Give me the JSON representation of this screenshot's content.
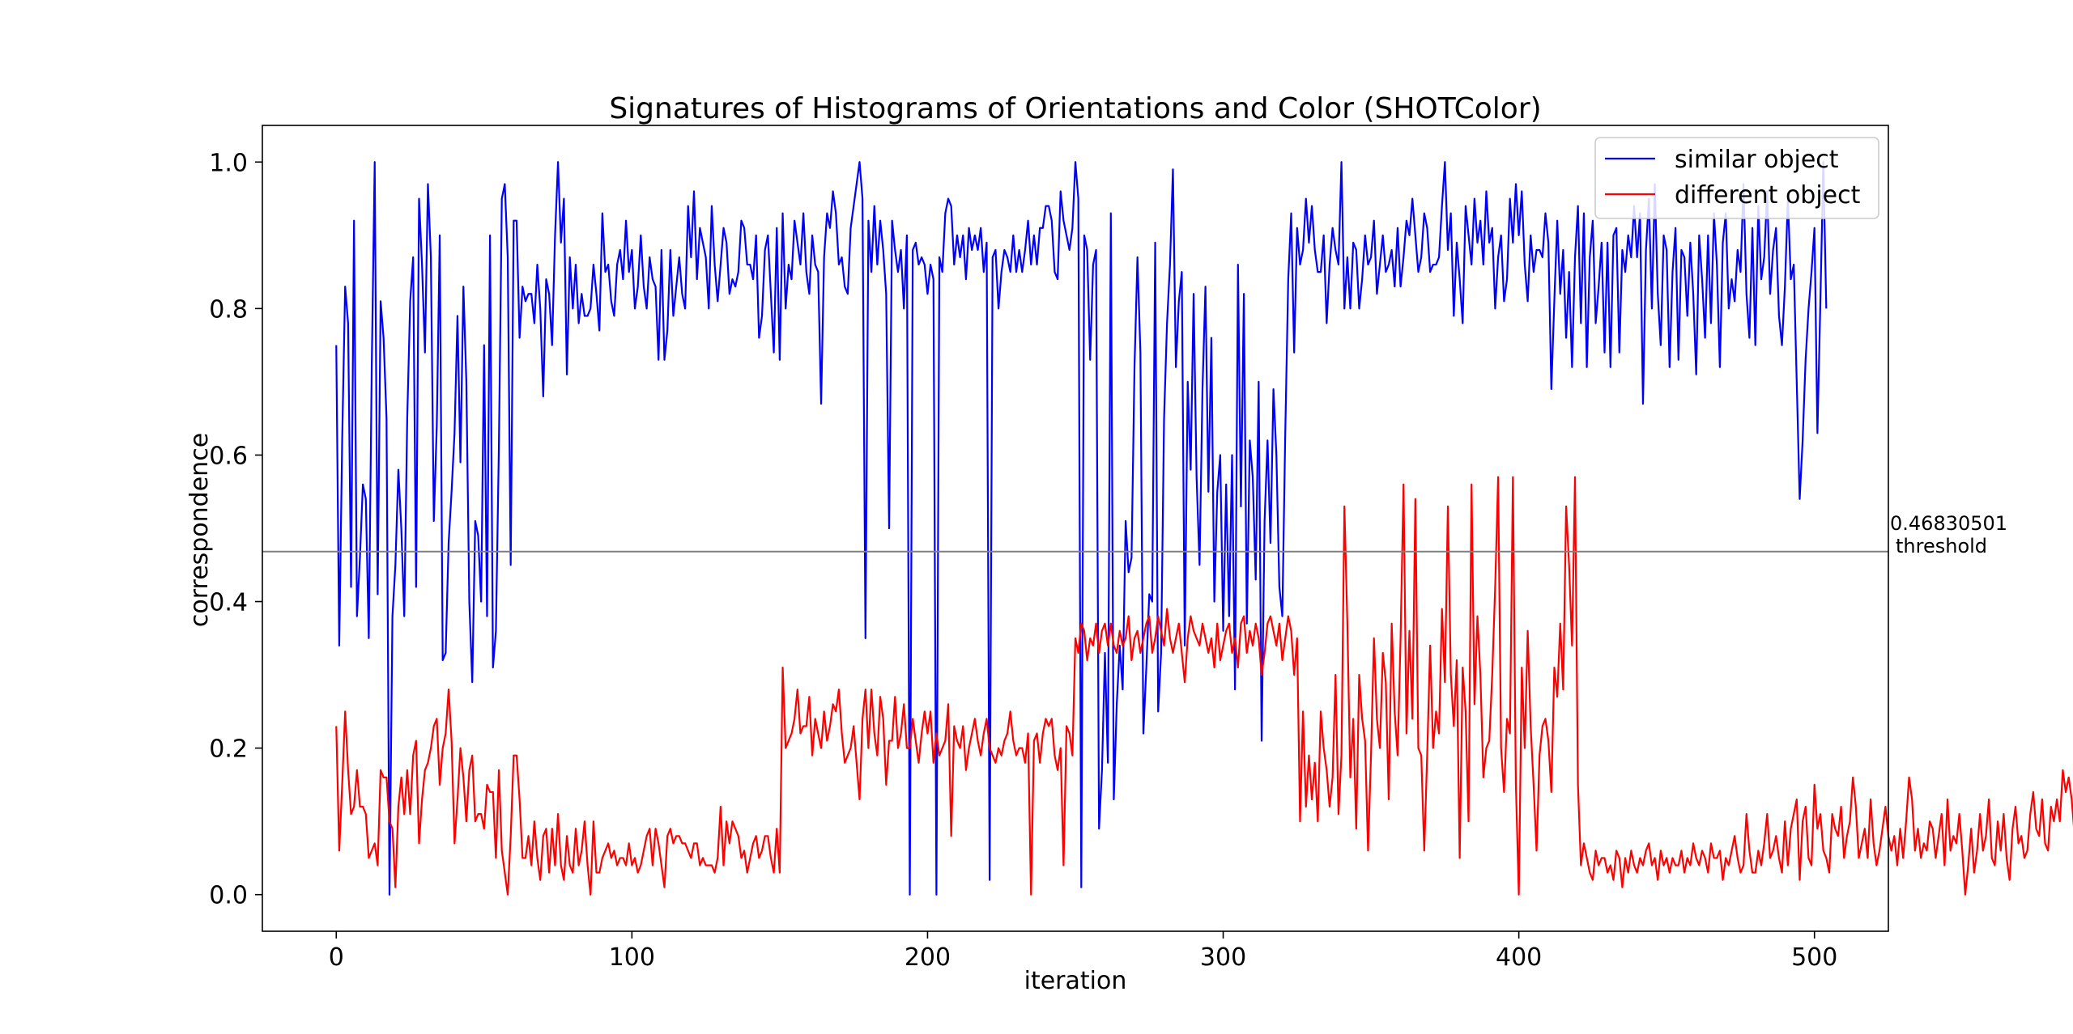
{
  "chart_data": {
    "type": "line",
    "title": "Signatures of Histograms of Orientations and Color (SHOTColor)",
    "xlabel": "iteration",
    "ylabel": "correspondence",
    "xlim": [
      -25,
      525
    ],
    "ylim": [
      -0.05,
      1.05
    ],
    "xticks": [
      0,
      100,
      200,
      300,
      400,
      500
    ],
    "yticks": [
      0.0,
      0.2,
      0.4,
      0.6,
      0.8,
      1.0
    ],
    "xtick_labels": [
      "0",
      "100",
      "200",
      "300",
      "400",
      "500"
    ],
    "ytick_labels": [
      "0.0",
      "0.2",
      "0.4",
      "0.6",
      "0.8",
      "1.0"
    ],
    "grid": false,
    "legend_position": "top-right",
    "threshold": {
      "value": 0.46830501,
      "value_label": "0.46830501",
      "label": "threshold",
      "color": "#808080"
    },
    "series": [
      {
        "name": "similar object",
        "color": "#0000ff",
        "y": [
          0.75,
          0.34,
          0.62,
          0.83,
          0.78,
          0.42,
          0.92,
          0.38,
          0.46,
          0.56,
          0.54,
          0.35,
          0.72,
          1.0,
          0.41,
          0.81,
          0.76,
          0.65,
          0.0,
          0.38,
          0.45,
          0.58,
          0.5,
          0.38,
          0.65,
          0.81,
          0.87,
          0.42,
          0.95,
          0.86,
          0.74,
          0.97,
          0.87,
          0.51,
          0.64,
          0.9,
          0.32,
          0.33,
          0.48,
          0.55,
          0.63,
          0.79,
          0.59,
          0.83,
          0.7,
          0.4,
          0.29,
          0.51,
          0.49,
          0.4,
          0.75,
          0.38,
          0.9,
          0.31,
          0.36,
          0.61,
          0.95,
          0.97,
          0.87,
          0.45,
          0.92,
          0.92,
          0.76,
          0.83,
          0.81,
          0.82,
          0.82,
          0.78,
          0.86,
          0.8,
          0.68,
          0.84,
          0.82,
          0.75,
          0.9,
          1.0,
          0.89,
          0.95,
          0.71,
          0.87,
          0.8,
          0.86,
          0.78,
          0.82,
          0.79,
          0.79,
          0.8,
          0.86,
          0.82,
          0.77,
          0.93,
          0.85,
          0.86,
          0.81,
          0.79,
          0.86,
          0.88,
          0.84,
          0.92,
          0.85,
          0.88,
          0.8,
          0.83,
          0.9,
          0.83,
          0.8,
          0.87,
          0.84,
          0.83,
          0.73,
          0.88,
          0.73,
          0.77,
          0.88,
          0.79,
          0.83,
          0.87,
          0.82,
          0.8,
          0.94,
          0.87,
          0.96,
          0.84,
          0.91,
          0.89,
          0.87,
          0.8,
          0.94,
          0.86,
          0.81,
          0.86,
          0.91,
          0.89,
          0.82,
          0.84,
          0.83,
          0.85,
          0.92,
          0.91,
          0.86,
          0.86,
          0.84,
          0.9,
          0.76,
          0.79,
          0.88,
          0.9,
          0.82,
          0.74,
          0.91,
          0.73,
          0.93,
          0.8,
          0.86,
          0.84,
          0.92,
          0.89,
          0.86,
          0.93,
          0.85,
          0.82,
          0.9,
          0.86,
          0.85,
          0.67,
          0.87,
          0.93,
          0.91,
          0.96,
          0.93,
          0.86,
          0.87,
          0.83,
          0.82,
          0.91,
          0.94,
          0.97,
          1.0,
          0.95,
          0.35,
          0.92,
          0.85,
          0.94,
          0.86,
          0.92,
          0.88,
          0.82,
          0.5,
          0.92,
          0.88,
          0.85,
          0.88,
          0.8,
          0.9,
          0.0,
          0.88,
          0.89,
          0.86,
          0.87,
          0.86,
          0.82,
          0.86,
          0.84,
          0.0,
          0.87,
          0.85,
          0.93,
          0.95,
          0.94,
          0.86,
          0.9,
          0.87,
          0.9,
          0.84,
          0.91,
          0.88,
          0.9,
          0.88,
          0.91,
          0.85,
          0.89,
          0.02,
          0.87,
          0.88,
          0.8,
          0.85,
          0.88,
          0.87,
          0.85,
          0.9,
          0.85,
          0.88,
          0.85,
          0.88,
          0.92,
          0.86,
          0.9,
          0.86,
          0.91,
          0.91,
          0.94,
          0.94,
          0.92,
          0.85,
          0.84,
          0.96,
          0.92,
          0.9,
          0.88,
          0.91,
          1.0,
          0.95,
          0.01,
          0.9,
          0.88,
          0.73,
          0.86,
          0.88,
          0.09,
          0.17,
          0.33,
          0.18,
          0.93,
          0.13,
          0.26,
          0.34,
          0.28,
          0.51,
          0.44,
          0.46,
          0.72,
          0.87,
          0.74,
          0.22,
          0.31,
          0.41,
          0.4,
          0.89,
          0.25,
          0.33,
          0.65,
          0.78,
          0.86,
          0.99,
          0.72,
          0.81,
          0.85,
          0.34,
          0.7,
          0.58,
          0.82,
          0.57,
          0.45,
          0.69,
          0.83,
          0.55,
          0.76,
          0.4,
          0.55,
          0.6,
          0.36,
          0.56,
          0.38,
          0.6,
          0.28,
          0.86,
          0.53,
          0.82,
          0.37,
          0.62,
          0.57,
          0.43,
          0.7,
          0.21,
          0.51,
          0.62,
          0.48,
          0.69,
          0.6,
          0.42,
          0.38,
          0.63,
          0.84,
          0.93,
          0.74,
          0.91,
          0.86,
          0.88,
          0.95,
          0.89,
          0.94,
          0.88,
          0.85,
          0.85,
          0.9,
          0.78,
          0.86,
          0.91,
          0.88,
          0.86,
          1.0,
          0.8,
          0.87,
          0.8,
          0.89,
          0.88,
          0.8,
          0.84,
          0.9,
          0.86,
          0.87,
          0.92,
          0.82,
          0.86,
          0.9,
          0.85,
          0.86,
          0.88,
          0.83,
          0.91,
          0.83,
          0.87,
          0.92,
          0.9,
          0.95,
          0.9,
          0.85,
          0.87,
          0.93,
          0.91,
          0.85,
          0.86,
          0.86,
          0.87,
          0.94,
          1.0,
          0.88,
          0.93,
          0.79,
          0.89,
          0.84,
          0.78,
          0.94,
          0.9,
          0.86,
          0.95,
          0.89,
          0.92,
          0.86,
          0.96,
          0.89,
          0.91,
          0.8,
          0.87,
          0.9,
          0.81,
          0.84,
          0.95,
          0.89,
          0.97,
          0.9,
          0.96,
          0.86,
          0.81,
          0.9,
          0.85,
          0.88,
          0.88,
          0.87,
          0.93,
          0.89,
          0.69,
          0.81,
          0.92,
          0.82,
          0.88,
          0.76,
          0.85,
          0.72,
          0.87,
          0.94,
          0.78,
          0.93,
          0.72,
          0.87,
          0.92,
          0.78,
          0.83,
          0.89,
          0.74,
          0.89,
          0.72,
          0.9,
          0.91,
          0.74,
          0.88,
          0.85,
          0.9,
          0.87,
          0.94,
          0.87,
          0.93,
          0.67,
          0.88,
          0.95,
          0.8,
          0.97,
          0.82,
          0.75,
          0.9,
          0.88,
          0.72,
          0.85,
          0.91,
          0.73,
          0.88,
          0.87,
          0.79,
          0.89,
          0.82,
          0.71,
          0.9,
          0.84,
          0.76,
          0.9,
          0.78,
          0.93,
          0.86,
          0.72,
          0.89,
          0.93,
          0.8,
          0.84,
          0.81,
          0.88,
          0.85,
          0.97,
          0.82,
          0.76,
          0.91,
          0.75,
          0.94,
          0.84,
          0.87,
          0.96,
          0.82,
          0.88,
          0.91,
          0.79,
          0.75,
          0.83,
          0.95,
          0.84,
          0.86,
          0.7,
          0.54,
          0.62,
          0.73,
          0.8,
          0.85,
          0.91,
          0.63,
          0.81,
          1.0,
          0.8
        ]
      },
      {
        "name": "different object",
        "color": "#ff0000",
        "y": [
          0.23,
          0.06,
          0.15,
          0.25,
          0.17,
          0.11,
          0.12,
          0.17,
          0.12,
          0.12,
          0.11,
          0.05,
          0.06,
          0.07,
          0.04,
          0.17,
          0.16,
          0.16,
          0.1,
          0.09,
          0.01,
          0.12,
          0.16,
          0.11,
          0.17,
          0.11,
          0.19,
          0.21,
          0.07,
          0.13,
          0.17,
          0.18,
          0.2,
          0.23,
          0.24,
          0.15,
          0.2,
          0.22,
          0.28,
          0.21,
          0.07,
          0.13,
          0.2,
          0.16,
          0.1,
          0.17,
          0.19,
          0.1,
          0.11,
          0.11,
          0.09,
          0.15,
          0.14,
          0.14,
          0.05,
          0.17,
          0.06,
          0.03,
          0.0,
          0.08,
          0.19,
          0.19,
          0.13,
          0.05,
          0.05,
          0.08,
          0.04,
          0.1,
          0.05,
          0.02,
          0.08,
          0.09,
          0.03,
          0.09,
          0.04,
          0.11,
          0.04,
          0.02,
          0.08,
          0.04,
          0.03,
          0.09,
          0.04,
          0.06,
          0.1,
          0.04,
          0.0,
          0.1,
          0.03,
          0.03,
          0.05,
          0.06,
          0.07,
          0.05,
          0.06,
          0.04,
          0.05,
          0.05,
          0.04,
          0.07,
          0.04,
          0.05,
          0.03,
          0.04,
          0.06,
          0.08,
          0.09,
          0.04,
          0.09,
          0.07,
          0.04,
          0.01,
          0.08,
          0.09,
          0.07,
          0.08,
          0.08,
          0.07,
          0.07,
          0.06,
          0.05,
          0.07,
          0.07,
          0.04,
          0.05,
          0.04,
          0.04,
          0.04,
          0.03,
          0.05,
          0.12,
          0.04,
          0.1,
          0.07,
          0.1,
          0.09,
          0.08,
          0.05,
          0.06,
          0.03,
          0.05,
          0.07,
          0.08,
          0.05,
          0.06,
          0.08,
          0.08,
          0.05,
          0.03,
          0.09,
          0.03,
          0.31,
          0.2,
          0.21,
          0.22,
          0.24,
          0.28,
          0.22,
          0.23,
          0.23,
          0.27,
          0.19,
          0.24,
          0.22,
          0.2,
          0.25,
          0.21,
          0.23,
          0.26,
          0.25,
          0.28,
          0.22,
          0.18,
          0.19,
          0.2,
          0.23,
          0.18,
          0.13,
          0.24,
          0.28,
          0.2,
          0.28,
          0.22,
          0.19,
          0.27,
          0.24,
          0.15,
          0.21,
          0.21,
          0.27,
          0.2,
          0.22,
          0.26,
          0.2,
          0.2,
          0.24,
          0.21,
          0.18,
          0.22,
          0.25,
          0.22,
          0.25,
          0.18,
          0.22,
          0.19,
          0.2,
          0.21,
          0.26,
          0.08,
          0.23,
          0.21,
          0.2,
          0.23,
          0.17,
          0.2,
          0.22,
          0.24,
          0.21,
          0.19,
          0.22,
          0.24,
          0.2,
          0.19,
          0.18,
          0.2,
          0.19,
          0.21,
          0.22,
          0.25,
          0.21,
          0.19,
          0.2,
          0.2,
          0.18,
          0.22,
          0.0,
          0.21,
          0.22,
          0.18,
          0.22,
          0.24,
          0.23,
          0.24,
          0.19,
          0.17,
          0.2,
          0.04,
          0.23,
          0.22,
          0.19,
          0.35,
          0.33,
          0.37,
          0.36,
          0.32,
          0.35,
          0.34,
          0.37,
          0.33,
          0.36,
          0.37,
          0.34,
          0.37,
          0.34,
          0.33,
          0.36,
          0.34,
          0.35,
          0.38,
          0.32,
          0.35,
          0.36,
          0.33,
          0.35,
          0.37,
          0.38,
          0.33,
          0.35,
          0.38,
          0.36,
          0.34,
          0.39,
          0.35,
          0.33,
          0.35,
          0.37,
          0.33,
          0.29,
          0.35,
          0.38,
          0.36,
          0.35,
          0.34,
          0.37,
          0.35,
          0.33,
          0.35,
          0.31,
          0.37,
          0.32,
          0.34,
          0.36,
          0.37,
          0.33,
          0.35,
          0.31,
          0.37,
          0.38,
          0.33,
          0.36,
          0.34,
          0.37,
          0.35,
          0.3,
          0.33,
          0.37,
          0.38,
          0.36,
          0.34,
          0.37,
          0.32,
          0.35,
          0.38,
          0.36,
          0.3,
          0.35,
          0.1,
          0.25,
          0.12,
          0.19,
          0.13,
          0.18,
          0.1,
          0.25,
          0.2,
          0.17,
          0.12,
          0.16,
          0.3,
          0.11,
          0.19,
          0.53,
          0.37,
          0.16,
          0.24,
          0.09,
          0.3,
          0.24,
          0.21,
          0.06,
          0.19,
          0.35,
          0.24,
          0.2,
          0.33,
          0.29,
          0.13,
          0.37,
          0.25,
          0.19,
          0.35,
          0.56,
          0.22,
          0.36,
          0.24,
          0.54,
          0.2,
          0.19,
          0.06,
          0.19,
          0.34,
          0.2,
          0.25,
          0.22,
          0.39,
          0.29,
          0.53,
          0.3,
          0.23,
          0.32,
          0.05,
          0.31,
          0.25,
          0.1,
          0.56,
          0.26,
          0.38,
          0.3,
          0.16,
          0.2,
          0.21,
          0.3,
          0.42,
          0.57,
          0.2,
          0.14,
          0.24,
          0.22,
          0.57,
          0.15,
          0.0,
          0.31,
          0.2,
          0.36,
          0.23,
          0.15,
          0.06,
          0.19,
          0.23,
          0.24,
          0.21,
          0.14,
          0.31,
          0.27,
          0.37,
          0.28,
          0.53,
          0.45,
          0.34,
          0.57,
          0.15,
          0.04,
          0.07,
          0.05,
          0.03,
          0.02,
          0.06,
          0.04,
          0.05,
          0.05,
          0.03,
          0.04,
          0.02,
          0.06,
          0.05,
          0.01,
          0.05,
          0.03,
          0.06,
          0.04,
          0.03,
          0.05,
          0.04,
          0.06,
          0.07,
          0.04,
          0.05,
          0.02,
          0.06,
          0.04,
          0.05,
          0.03,
          0.05,
          0.04,
          0.04,
          0.06,
          0.03,
          0.05,
          0.04,
          0.07,
          0.05,
          0.04,
          0.06,
          0.05,
          0.03,
          0.07,
          0.05,
          0.05,
          0.06,
          0.02,
          0.05,
          0.04,
          0.06,
          0.08,
          0.05,
          0.03,
          0.04,
          0.11,
          0.06,
          0.03,
          0.03,
          0.06,
          0.04,
          0.07,
          0.11,
          0.05,
          0.06,
          0.08,
          0.05,
          0.03,
          0.1,
          0.04,
          0.09,
          0.11,
          0.13,
          0.02,
          0.1,
          0.12,
          0.05,
          0.04,
          0.15,
          0.09,
          0.11,
          0.06,
          0.05,
          0.03,
          0.11,
          0.09,
          0.08,
          0.12,
          0.05,
          0.08,
          0.1,
          0.16,
          0.12,
          0.05,
          0.07,
          0.09,
          0.05,
          0.13,
          0.07,
          0.04,
          0.06,
          0.09,
          0.12,
          0.08,
          0.06,
          0.08,
          0.04,
          0.09,
          0.05,
          0.1,
          0.16,
          0.13,
          0.06,
          0.09,
          0.05,
          0.07,
          0.06,
          0.1,
          0.09,
          0.05,
          0.08,
          0.11,
          0.04,
          0.13,
          0.06,
          0.08,
          0.07,
          0.11,
          0.06,
          0.0,
          0.04,
          0.09,
          0.03,
          0.06,
          0.11,
          0.06,
          0.08,
          0.13,
          0.05,
          0.04,
          0.1,
          0.06,
          0.11,
          0.05,
          0.02,
          0.09,
          0.12,
          0.07,
          0.08,
          0.05,
          0.06,
          0.11,
          0.14,
          0.09,
          0.08,
          0.13,
          0.07,
          0.06,
          0.12,
          0.1,
          0.13,
          0.1,
          0.17,
          0.14,
          0.16,
          0.13,
          0.08,
          0.06,
          0.06,
          0.13,
          0.12,
          0.08,
          0.04,
          0.02,
          0.12
        ]
      }
    ]
  }
}
